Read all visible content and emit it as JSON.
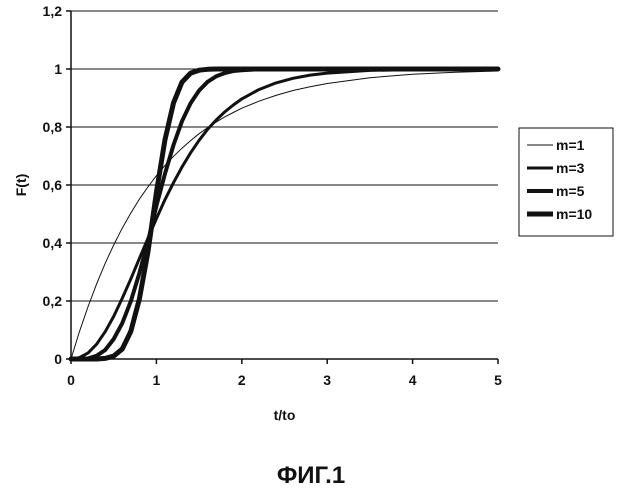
{
  "figure": {
    "caption": "ФИГ.1"
  },
  "chart_data": {
    "type": "line",
    "xlabel": "t/to",
    "ylabel": "F(t)",
    "xlim": [
      0,
      5
    ],
    "ylim": [
      0,
      1.2
    ],
    "x_ticks": [
      0,
      1,
      2,
      3,
      4,
      5
    ],
    "x_tick_labels": [
      "0",
      "1",
      "2",
      "3",
      "4",
      "5"
    ],
    "y_ticks": [
      0,
      0.2,
      0.4,
      0.6,
      0.8,
      1.0,
      1.2
    ],
    "y_tick_labels": [
      "0",
      "0,2",
      "0,4",
      "0,6",
      "0,8",
      "1",
      "1,2"
    ],
    "grid": "horizontal",
    "legend_position": "right",
    "x": [
      0,
      0.1,
      0.2,
      0.3,
      0.4,
      0.5,
      0.6,
      0.7,
      0.8,
      0.9,
      1.0,
      1.1,
      1.2,
      1.3,
      1.4,
      1.5,
      1.6,
      1.7,
      1.8,
      1.9,
      2.0,
      2.2,
      2.4,
      2.6,
      2.8,
      3.0,
      3.5,
      4.0,
      4.5,
      5.0
    ],
    "series": [
      {
        "name": "m=1",
        "line_width": 1,
        "values": [
          0,
          0.095,
          0.181,
          0.259,
          0.33,
          0.393,
          0.451,
          0.503,
          0.551,
          0.593,
          0.632,
          0.667,
          0.699,
          0.727,
          0.753,
          0.777,
          0.798,
          0.817,
          0.835,
          0.85,
          0.865,
          0.889,
          0.909,
          0.926,
          0.939,
          0.95,
          0.97,
          0.982,
          0.989,
          0.993
        ]
      },
      {
        "name": "m=3",
        "line_width": 3,
        "values": [
          0,
          0.005,
          0.021,
          0.051,
          0.094,
          0.147,
          0.209,
          0.276,
          0.346,
          0.416,
          0.484,
          0.549,
          0.608,
          0.662,
          0.711,
          0.754,
          0.792,
          0.824,
          0.852,
          0.876,
          0.897,
          0.929,
          0.952,
          0.968,
          0.979,
          0.986,
          0.995,
          0.998,
          0.999,
          1.0
        ]
      },
      {
        "name": "m=5",
        "line_width": 4,
        "values": [
          0,
          0.0,
          0.002,
          0.011,
          0.031,
          0.069,
          0.123,
          0.199,
          0.295,
          0.405,
          0.528,
          0.638,
          0.738,
          0.82,
          0.882,
          0.926,
          0.956,
          0.975,
          0.986,
          0.993,
          0.996,
          0.999,
          1.0,
          1.0,
          1.0,
          1.0,
          1.0,
          1.0,
          1.0,
          1.0
        ]
      },
      {
        "name": "m=10",
        "line_width": 5,
        "values": [
          0,
          0.0,
          0.0,
          0.0,
          0.002,
          0.01,
          0.034,
          0.095,
          0.206,
          0.368,
          0.574,
          0.755,
          0.883,
          0.955,
          0.986,
          0.996,
          0.999,
          1.0,
          1.0,
          1.0,
          1.0,
          1.0,
          1.0,
          1.0,
          1.0,
          1.0,
          1.0,
          1.0,
          1.0,
          1.0
        ]
      }
    ],
    "reference_line": {
      "y": 1.0
    }
  }
}
